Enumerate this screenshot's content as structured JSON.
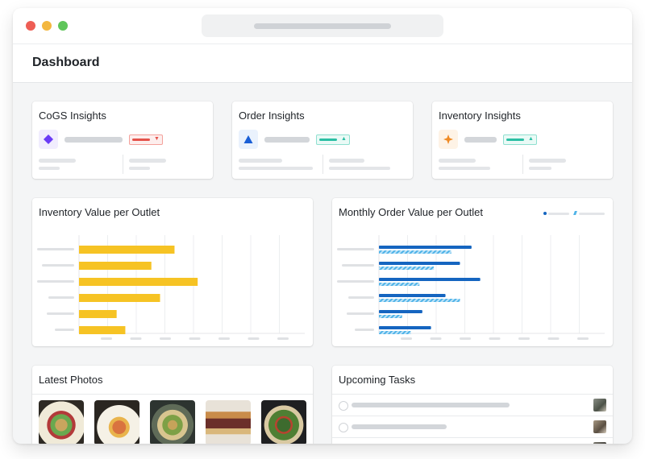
{
  "page": {
    "title": "Dashboard"
  },
  "insights": [
    {
      "title": "CoGS Insights",
      "icon": "diamond-icon",
      "icon_color": "#6b3cf6",
      "icon_bg": "#f1edfe",
      "trend": "down",
      "trend_color": "#e5534b"
    },
    {
      "title": "Order Insights",
      "icon": "triangle-icon",
      "icon_color": "#1a5fd6",
      "icon_bg": "#eaf2fd",
      "trend": "up",
      "trend_color": "#2bbfa4"
    },
    {
      "title": "Inventory Insights",
      "icon": "sparkle-icon",
      "icon_color": "#f08a24",
      "icon_bg": "#fef3e6",
      "trend": "up",
      "trend_color": "#2bbfa4"
    }
  ],
  "inventory_chart": {
    "title": "Inventory Value per Outlet",
    "bar_color": "#f6c324"
  },
  "order_chart": {
    "title": "Monthly Order Value per Outlet",
    "primary_color": "#1565c0",
    "secondary_color": "#4fb3e8"
  },
  "chart_data": [
    {
      "type": "bar",
      "orientation": "horizontal",
      "title": "Inventory Value per Outlet",
      "categories_visible": false,
      "series": [
        {
          "values": [
            3.3,
            2.5,
            4.1,
            2.8,
            1.3,
            1.6
          ]
        }
      ],
      "xlim": [
        0,
        7.8
      ],
      "grid": true
    },
    {
      "type": "bar",
      "orientation": "horizontal",
      "title": "Monthly Order Value per Outlet",
      "categories_visible": false,
      "legend": "top-right",
      "series": [
        {
          "values": [
            3.2,
            2.8,
            3.5,
            2.3,
            1.5,
            1.8
          ]
        },
        {
          "values": [
            2.5,
            1.9,
            1.4,
            2.8,
            0.8,
            1.1
          ]
        }
      ],
      "xlim": [
        0,
        7.8
      ],
      "grid": true
    }
  ],
  "photos": {
    "title": "Latest Photos",
    "items": [
      {
        "name": "salad-bowl-photo"
      },
      {
        "name": "salmon-plate-photo"
      },
      {
        "name": "grain-bowl-photo"
      },
      {
        "name": "burger-photo"
      },
      {
        "name": "greens-salad-photo"
      }
    ]
  },
  "tasks": {
    "title": "Upcoming Tasks",
    "items": [
      {
        "name": "task-1"
      },
      {
        "name": "task-2"
      },
      {
        "name": "task-3"
      }
    ]
  }
}
